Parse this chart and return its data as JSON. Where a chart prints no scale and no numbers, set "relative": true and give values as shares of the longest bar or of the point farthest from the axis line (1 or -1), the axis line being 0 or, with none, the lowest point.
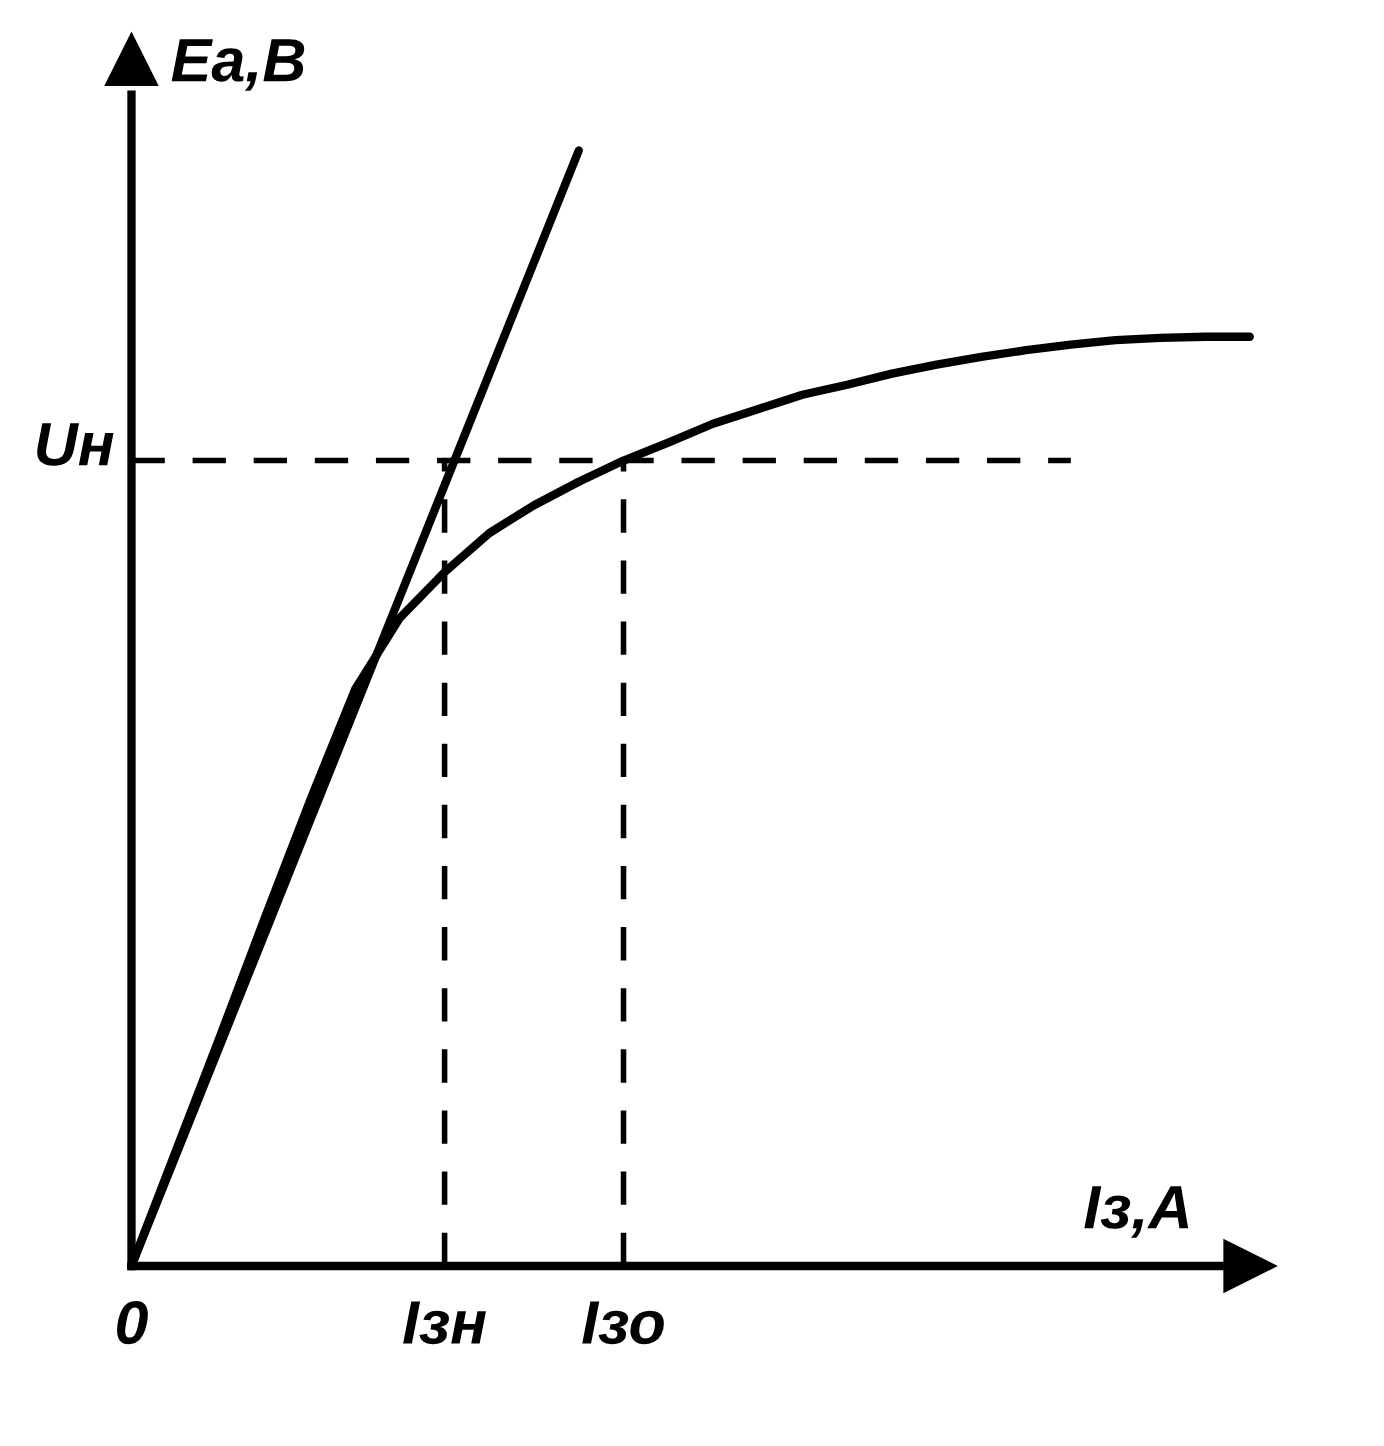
{
  "chart_data": {
    "type": "line",
    "relative": true,
    "xlabel": "Iз,A",
    "ylabel": "Ea,B",
    "categories": [
      "0",
      null,
      null,
      null,
      null,
      null,
      null,
      "Iзн",
      null,
      null,
      null,
      "Iзо",
      null,
      null,
      null,
      null,
      null,
      null,
      null,
      null,
      null,
      null,
      null,
      null,
      null,
      null
    ],
    "tick_labels": "x",
    "series": [
      {
        "color": "#000000",
        "values": [
          0,
          0.104,
          0.208,
          0.314,
          0.418,
          0.517,
          0.581,
          0.622,
          0.657,
          0.682,
          0.703,
          0.722,
          0.738,
          0.755,
          0.768,
          0.781,
          0.79,
          0.8,
          0.808,
          0.815,
          0.821,
          0.826,
          0.83,
          0.832,
          0.833,
          0.833
        ]
      },
      {
        "color": "#000000",
        "values": [
          0,
          0.1,
          0.2,
          0.3,
          0.4,
          0.5,
          0.6,
          0.7,
          0.8,
          0.9,
          1.0,
          null,
          null,
          null,
          null,
          null,
          null,
          null,
          null,
          null,
          null,
          null,
          null,
          null,
          null,
          null
        ]
      }
    ],
    "ref_lines": [
      {
        "axis": "y",
        "value": 0.722,
        "label": "Uн",
        "line_style": "dashed",
        "color": "#000000"
      },
      {
        "axis": "x",
        "value": "Iзн",
        "line_style": "dashed",
        "color": "#000000"
      },
      {
        "axis": "x",
        "value": "Iзо",
        "line_style": "dashed",
        "color": "#000000"
      }
    ],
    "line_style": "solid",
    "marker": "none",
    "legend": false
  }
}
